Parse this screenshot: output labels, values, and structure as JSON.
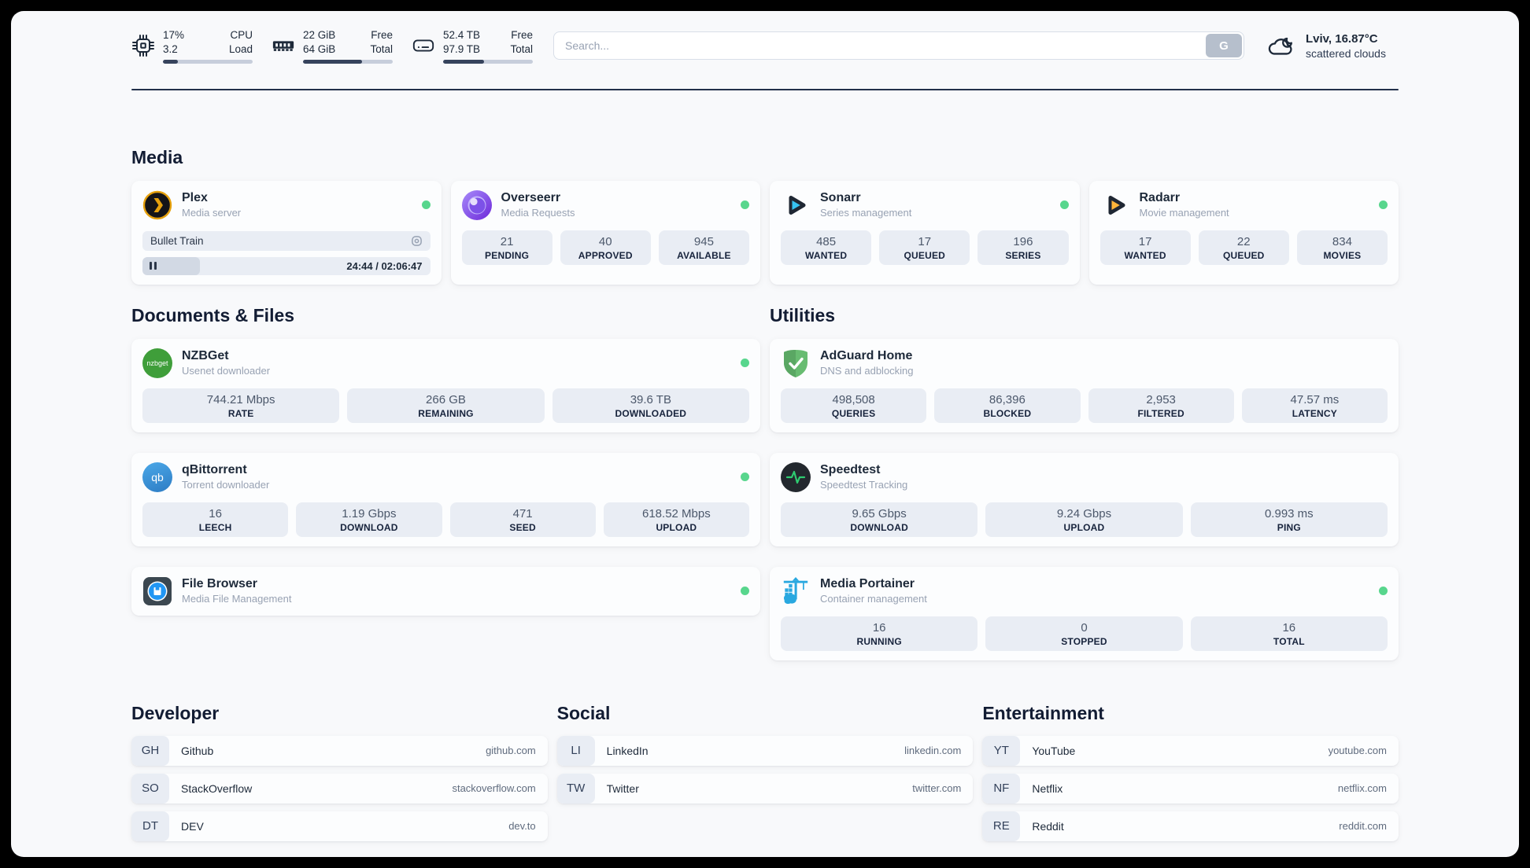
{
  "topbar": {
    "cpu": {
      "line1_value": "17%",
      "line2_value": "3.2",
      "line1_label": "CPU",
      "line2_label": "Load",
      "progress": 17
    },
    "ram": {
      "line1_value": "22 GiB",
      "line2_value": "64 GiB",
      "line1_label": "Free",
      "line2_label": "Total",
      "progress": 66
    },
    "disk": {
      "line1_value": "52.4 TB",
      "line2_value": "97.9 TB",
      "line1_label": "Free",
      "line2_label": "Total",
      "progress": 46
    },
    "search": {
      "placeholder": "Search...",
      "button_label": "G"
    },
    "weather": {
      "location": "Lviv, 16.87°C",
      "condition": "scattered clouds"
    }
  },
  "media": {
    "title": "Media",
    "plex": {
      "name": "Plex",
      "subtitle": "Media server",
      "now_playing": "Bullet Train",
      "time": "24:44 / 02:06:47",
      "progress": 20
    },
    "overseerr": {
      "name": "Overseerr",
      "subtitle": "Media Requests",
      "stats": [
        {
          "value": "21",
          "label": "PENDING"
        },
        {
          "value": "40",
          "label": "APPROVED"
        },
        {
          "value": "945",
          "label": "AVAILABLE"
        }
      ]
    },
    "sonarr": {
      "name": "Sonarr",
      "subtitle": "Series management",
      "stats": [
        {
          "value": "485",
          "label": "WANTED"
        },
        {
          "value": "17",
          "label": "QUEUED"
        },
        {
          "value": "196",
          "label": "SERIES"
        }
      ]
    },
    "radarr": {
      "name": "Radarr",
      "subtitle": "Movie management",
      "stats": [
        {
          "value": "17",
          "label": "WANTED"
        },
        {
          "value": "22",
          "label": "QUEUED"
        },
        {
          "value": "834",
          "label": "MOVIES"
        }
      ]
    }
  },
  "documents": {
    "title": "Documents & Files",
    "nzbget": {
      "name": "NZBGet",
      "subtitle": "Usenet downloader",
      "icon_text": "nzbget",
      "stats": [
        {
          "value": "744.21 Mbps",
          "label": "RATE"
        },
        {
          "value": "266 GB",
          "label": "REMAINING"
        },
        {
          "value": "39.6 TB",
          "label": "DOWNLOADED"
        }
      ]
    },
    "qbittorrent": {
      "name": "qBittorrent",
      "subtitle": "Torrent downloader",
      "icon_text": "qb",
      "stats": [
        {
          "value": "16",
          "label": "LEECH"
        },
        {
          "value": "1.19 Gbps",
          "label": "DOWNLOAD"
        },
        {
          "value": "471",
          "label": "SEED"
        },
        {
          "value": "618.52 Mbps",
          "label": "UPLOAD"
        }
      ]
    },
    "filebrowser": {
      "name": "File Browser",
      "subtitle": "Media File Management"
    }
  },
  "utilities": {
    "title": "Utilities",
    "adguard": {
      "name": "AdGuard Home",
      "subtitle": "DNS and adblocking",
      "stats": [
        {
          "value": "498,508",
          "label": "QUERIES"
        },
        {
          "value": "86,396",
          "label": "BLOCKED"
        },
        {
          "value": "2,953",
          "label": "FILTERED"
        },
        {
          "value": "47.57 ms",
          "label": "LATENCY"
        }
      ]
    },
    "speedtest": {
      "name": "Speedtest",
      "subtitle": "Speedtest Tracking",
      "stats": [
        {
          "value": "9.65 Gbps",
          "label": "DOWNLOAD"
        },
        {
          "value": "9.24 Gbps",
          "label": "UPLOAD"
        },
        {
          "value": "0.993 ms",
          "label": "PING"
        }
      ]
    },
    "portainer": {
      "name": "Media Portainer",
      "subtitle": "Container management",
      "stats": [
        {
          "value": "16",
          "label": "RUNNING"
        },
        {
          "value": "0",
          "label": "STOPPED"
        },
        {
          "value": "16",
          "label": "TOTAL"
        }
      ]
    }
  },
  "bookmarks": {
    "developer": {
      "title": "Developer",
      "items": [
        {
          "abbr": "GH",
          "name": "Github",
          "url": "github.com"
        },
        {
          "abbr": "SO",
          "name": "StackOverflow",
          "url": "stackoverflow.com"
        },
        {
          "abbr": "DT",
          "name": "DEV",
          "url": "dev.to"
        }
      ]
    },
    "social": {
      "title": "Social",
      "items": [
        {
          "abbr": "LI",
          "name": "LinkedIn",
          "url": "linkedin.com"
        },
        {
          "abbr": "TW",
          "name": "Twitter",
          "url": "twitter.com"
        }
      ]
    },
    "entertainment": {
      "title": "Entertainment",
      "items": [
        {
          "abbr": "YT",
          "name": "YouTube",
          "url": "youtube.com"
        },
        {
          "abbr": "NF",
          "name": "Netflix",
          "url": "netflix.com"
        },
        {
          "abbr": "RE",
          "name": "Reddit",
          "url": "reddit.com"
        }
      ]
    }
  },
  "colors": {
    "status_online": "#58d68d",
    "accent_dark": "#1d2939",
    "stat_box_bg": "#e9edf4"
  }
}
